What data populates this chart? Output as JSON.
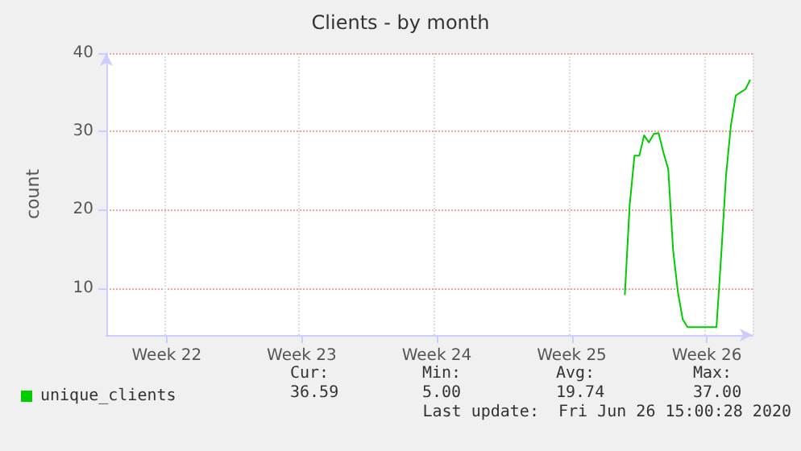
{
  "chart_data": {
    "type": "line",
    "title": "Clients - by month",
    "ylabel": "count",
    "categories": [
      null,
      null,
      null,
      null,
      null,
      null,
      null,
      null,
      null,
      null,
      null,
      null,
      "Week 22",
      null,
      null,
      null,
      null,
      null,
      null,
      null,
      null,
      null,
      null,
      null,
      null,
      null,
      null,
      null,
      null,
      null,
      null,
      null,
      null,
      null,
      null,
      null,
      null,
      null,
      null,
      null,
      "Week 23",
      null,
      null,
      null,
      null,
      null,
      null,
      null,
      null,
      null,
      null,
      null,
      null,
      null,
      null,
      null,
      null,
      null,
      null,
      null,
      null,
      null,
      null,
      null,
      null,
      null,
      null,
      null,
      "Week 24",
      null,
      null,
      null,
      null,
      null,
      null,
      null,
      null,
      null,
      null,
      null,
      null,
      null,
      null,
      null,
      null,
      null,
      null,
      null,
      null,
      null,
      null,
      null,
      null,
      null,
      null,
      null,
      "Week 25",
      null,
      null,
      null,
      null,
      null,
      null,
      null,
      null,
      null,
      null,
      null,
      null,
      null,
      null,
      null,
      null,
      null,
      null,
      null,
      null,
      null,
      null,
      null,
      null,
      null,
      null,
      null,
      "Week 26",
      null,
      null,
      null,
      null,
      null,
      null,
      null,
      null,
      null
    ],
    "series": [
      {
        "name": "unique_clients",
        "color": "#00cc00",
        "values": [
          null,
          null,
          null,
          null,
          null,
          null,
          null,
          null,
          null,
          null,
          null,
          null,
          null,
          null,
          null,
          null,
          null,
          null,
          null,
          null,
          null,
          null,
          null,
          null,
          null,
          null,
          null,
          null,
          null,
          null,
          null,
          null,
          null,
          null,
          null,
          null,
          null,
          null,
          null,
          null,
          null,
          null,
          null,
          null,
          null,
          null,
          null,
          null,
          null,
          null,
          null,
          null,
          null,
          null,
          null,
          null,
          null,
          null,
          null,
          null,
          null,
          null,
          null,
          null,
          null,
          null,
          null,
          null,
          null,
          null,
          null,
          null,
          null,
          null,
          null,
          null,
          null,
          null,
          null,
          null,
          null,
          null,
          null,
          null,
          null,
          null,
          null,
          null,
          null,
          null,
          null,
          null,
          null,
          null,
          null,
          null,
          null,
          null,
          null,
          null,
          null,
          null,
          null,
          null,
          null,
          null,
          null,
          9.1,
          20.6,
          26.9,
          26.9,
          29.5,
          28.6,
          29.7,
          29.8,
          27.3,
          25.2,
          14.9,
          9.5,
          6.0,
          5.0,
          5.0,
          5.0,
          5.0,
          5.0,
          5.0,
          5.0,
          14.4,
          24.5,
          30.8,
          34.6,
          35.0,
          35.4,
          36.6
        ]
      }
    ],
    "ylim": [
      4,
      40
    ],
    "yticks": [
      10,
      20,
      30,
      40
    ],
    "grid": true,
    "legend": "bottom left",
    "marker": "none",
    "line_style": "solid",
    "annotations": [
      "Cur:",
      "Min:",
      "Avg:",
      "Max:",
      "36.59",
      "5.00",
      "19.74",
      "37.00",
      "Last update:  Fri Jun 26 15:00:28 2020"
    ]
  }
}
